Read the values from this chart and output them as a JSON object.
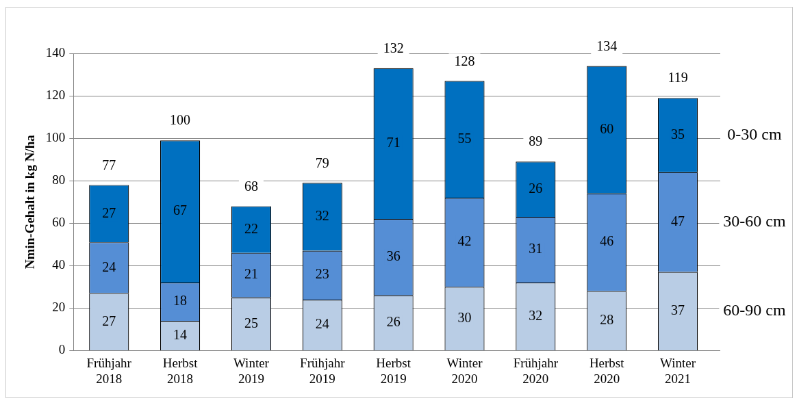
{
  "chart_data": {
    "type": "bar",
    "stacked": true,
    "ylabel": "Nmin-Gehalt in kg N/ha",
    "categories": [
      "Frühjahr 2018",
      "Herbst 2018",
      "Winter 2019",
      "Frühjahr 2019",
      "Herbst 2019",
      "Winter 2020",
      "Frühjahr 2020",
      "Herbst 2020",
      "Winter 2021"
    ],
    "series": [
      {
        "name": "60-90 cm",
        "color": "#b9cde5",
        "values": [
          27,
          14,
          25,
          24,
          26,
          30,
          32,
          28,
          37
        ]
      },
      {
        "name": "30-60 cm",
        "color": "#558ed5",
        "values": [
          24,
          18,
          21,
          23,
          36,
          42,
          31,
          46,
          47
        ]
      },
      {
        "name": "0-30 cm",
        "color": "#0070c0",
        "values": [
          27,
          67,
          22,
          32,
          71,
          55,
          26,
          60,
          35
        ]
      }
    ],
    "totals": [
      "77",
      "100",
      "68",
      "79",
      "132",
      "128",
      "89",
      "134",
      "119"
    ],
    "ylim": [
      0,
      140
    ],
    "yticks": [
      0,
      20,
      40,
      60,
      80,
      100,
      120,
      140
    ],
    "grid": "y",
    "legend": "right",
    "data_labels": true
  }
}
